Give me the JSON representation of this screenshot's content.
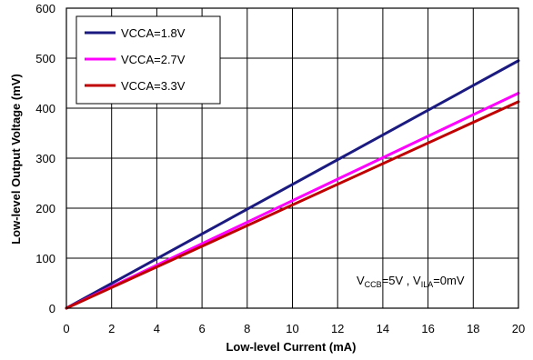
{
  "chart_data": {
    "type": "line",
    "title": "",
    "xlabel": "Low-level  Current  (mA)",
    "ylabel": "Low-level Output  Voltage  (mV)",
    "xlim": [
      0,
      20
    ],
    "ylim": [
      0,
      600
    ],
    "xticks": [
      "0",
      "2",
      "4",
      "6",
      "8",
      "10",
      "12",
      "14",
      "16",
      "18",
      "20"
    ],
    "yticks": [
      "0",
      "100",
      "200",
      "300",
      "400",
      "500",
      "600"
    ],
    "grid": true,
    "legend_position": "top-left",
    "series": [
      {
        "name": "VCCA=1.8V",
        "color": "#1a1a80",
        "x": [
          0,
          20
        ],
        "y": [
          0,
          495
        ]
      },
      {
        "name": "VCCA=2.7V",
        "color": "#ff00ff",
        "x": [
          0,
          20
        ],
        "y": [
          0,
          430
        ]
      },
      {
        "name": "VCCA=3.3V",
        "color": "#c00000",
        "x": [
          0,
          20
        ],
        "y": [
          0,
          413
        ]
      }
    ],
    "annotation": {
      "v": "V",
      "ccb_sub": "CCB",
      "ccb_val": "=5V , ",
      "ila_sub": "ILA",
      "ila_val": "=0mV"
    }
  }
}
